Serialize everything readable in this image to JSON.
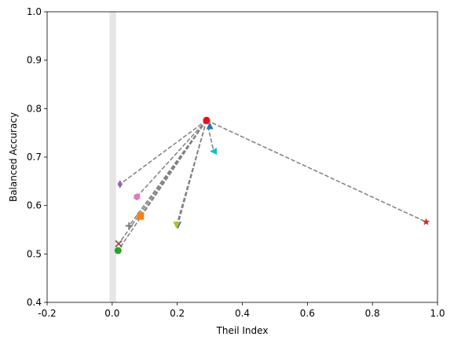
{
  "chart_data": {
    "type": "scatter",
    "xlabel": "Theil Index",
    "ylabel": "Balanced Accuracy",
    "xlim": [
      -0.2,
      1.0
    ],
    "ylim": [
      0.4,
      1.0
    ],
    "x_ticks": [
      -0.2,
      0.0,
      0.2,
      0.4,
      0.6,
      0.8,
      1.0
    ],
    "y_ticks": [
      0.4,
      0.5,
      0.6,
      0.7,
      0.8,
      0.9,
      1.0
    ],
    "x_tick_labels": [
      "-0.2",
      "0.0",
      "0.2",
      "0.4",
      "0.6",
      "0.8",
      "1.0"
    ],
    "y_tick_labels": [
      "0.4",
      "0.5",
      "0.6",
      "0.7",
      "0.8",
      "0.9",
      "1.0"
    ],
    "grid": false,
    "shaded_band": {
      "x": [
        -0.008,
        0.012
      ],
      "color": "#e6e6e6"
    },
    "origin": {
      "x": 0.29,
      "y": 0.776,
      "color": "#e8101b",
      "marker": "circle"
    },
    "connector_color": "#808080",
    "points": [
      {
        "x": 0.3,
        "y": 0.764,
        "marker": "triangle-up",
        "color": "#1f77b4"
      },
      {
        "x": 0.312,
        "y": 0.712,
        "marker": "triangle-left",
        "color": "#17becf"
      },
      {
        "x": 0.202,
        "y": 0.56,
        "marker": "triangle-down",
        "color": "#1f77b4"
      },
      {
        "x": 0.198,
        "y": 0.56,
        "marker": "triangle-down",
        "color": "#bcbd22"
      },
      {
        "x": 0.965,
        "y": 0.566,
        "marker": "star",
        "color": "#d62728"
      },
      {
        "x": 0.024,
        "y": 0.644,
        "marker": "diamond",
        "color": "#9467bd"
      },
      {
        "x": 0.076,
        "y": 0.618,
        "marker": "hexagon",
        "color": "#e377c2"
      },
      {
        "x": 0.087,
        "y": 0.578,
        "marker": "square",
        "color": "#ff7f0e"
      },
      {
        "x": 0.052,
        "y": 0.558,
        "marker": "plus",
        "color": "#7f7f7f"
      },
      {
        "x": 0.02,
        "y": 0.521,
        "marker": "x",
        "color": "#8c564b"
      },
      {
        "x": 0.018,
        "y": 0.507,
        "marker": "circle",
        "color": "#2ca02c"
      }
    ]
  }
}
